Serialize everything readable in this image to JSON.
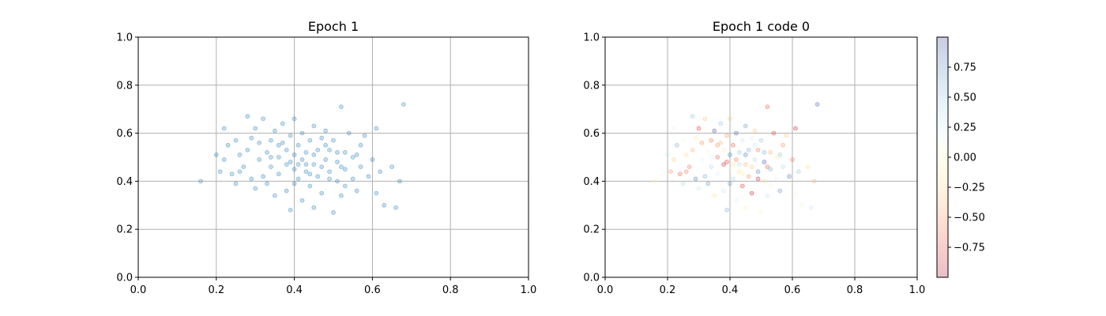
{
  "chart_data": [
    {
      "type": "scatter",
      "title": "Epoch 1",
      "xlim": [
        0,
        1
      ],
      "ylim": [
        0,
        1
      ],
      "xticks": [
        "0.0",
        "0.2",
        "0.4",
        "0.6",
        "0.8",
        "1.0"
      ],
      "yticks": [
        "0.0",
        "0.2",
        "0.4",
        "0.6",
        "0.8",
        "1.0"
      ],
      "grid": true,
      "point_color": "#1f77b4",
      "point_alpha": 0.25,
      "points": [
        [
          0.16,
          0.4
        ],
        [
          0.2,
          0.51
        ],
        [
          0.21,
          0.44
        ],
        [
          0.22,
          0.62
        ],
        [
          0.22,
          0.49
        ],
        [
          0.23,
          0.55
        ],
        [
          0.24,
          0.43
        ],
        [
          0.25,
          0.57
        ],
        [
          0.25,
          0.39
        ],
        [
          0.26,
          0.51
        ],
        [
          0.27,
          0.46
        ],
        [
          0.28,
          0.67
        ],
        [
          0.28,
          0.53
        ],
        [
          0.29,
          0.41
        ],
        [
          0.29,
          0.58
        ],
        [
          0.3,
          0.37
        ],
        [
          0.3,
          0.62
        ],
        [
          0.31,
          0.49
        ],
        [
          0.31,
          0.56
        ],
        [
          0.32,
          0.42
        ],
        [
          0.32,
          0.66
        ],
        [
          0.33,
          0.52
        ],
        [
          0.33,
          0.39
        ],
        [
          0.34,
          0.57
        ],
        [
          0.34,
          0.46
        ],
        [
          0.35,
          0.34
        ],
        [
          0.35,
          0.61
        ],
        [
          0.36,
          0.5
        ],
        [
          0.36,
          0.43
        ],
        [
          0.37,
          0.56
        ],
        [
          0.37,
          0.64
        ],
        [
          0.38,
          0.47
        ],
        [
          0.38,
          0.36
        ],
        [
          0.38,
          0.53
        ],
        [
          0.39,
          0.28
        ],
        [
          0.39,
          0.59
        ],
        [
          0.4,
          0.45
        ],
        [
          0.4,
          0.51
        ],
        [
          0.4,
          0.66
        ],
        [
          0.41,
          0.41
        ],
        [
          0.41,
          0.55
        ],
        [
          0.42,
          0.32
        ],
        [
          0.42,
          0.49
        ],
        [
          0.42,
          0.6
        ],
        [
          0.43,
          0.44
        ],
        [
          0.43,
          0.52
        ],
        [
          0.44,
          0.38
        ],
        [
          0.44,
          0.57
        ],
        [
          0.45,
          0.47
        ],
        [
          0.45,
          0.63
        ],
        [
          0.45,
          0.29
        ],
        [
          0.46,
          0.53
        ],
        [
          0.46,
          0.42
        ],
        [
          0.47,
          0.58
        ],
        [
          0.47,
          0.35
        ],
        [
          0.48,
          0.49
        ],
        [
          0.48,
          0.61
        ],
        [
          0.49,
          0.44
        ],
        [
          0.49,
          0.53
        ],
        [
          0.5,
          0.27
        ],
        [
          0.5,
          0.57
        ],
        [
          0.51,
          0.4
        ],
        [
          0.51,
          0.48
        ],
        [
          0.52,
          0.71
        ],
        [
          0.52,
          0.34
        ],
        [
          0.53,
          0.52
        ],
        [
          0.53,
          0.45
        ],
        [
          0.54,
          0.6
        ],
        [
          0.55,
          0.41
        ],
        [
          0.55,
          0.5
        ],
        [
          0.56,
          0.36
        ],
        [
          0.57,
          0.55
        ],
        [
          0.57,
          0.46
        ],
        [
          0.58,
          0.59
        ],
        [
          0.59,
          0.42
        ],
        [
          0.6,
          0.49
        ],
        [
          0.61,
          0.35
        ],
        [
          0.61,
          0.62
        ],
        [
          0.62,
          0.44
        ],
        [
          0.63,
          0.3
        ],
        [
          0.65,
          0.46
        ],
        [
          0.66,
          0.29
        ],
        [
          0.67,
          0.4
        ],
        [
          0.68,
          0.72
        ],
        [
          0.26,
          0.44
        ],
        [
          0.34,
          0.5
        ],
        [
          0.39,
          0.48
        ],
        [
          0.43,
          0.47
        ],
        [
          0.47,
          0.46
        ],
        [
          0.51,
          0.52
        ],
        [
          0.36,
          0.55
        ],
        [
          0.4,
          0.39
        ],
        [
          0.44,
          0.43
        ],
        [
          0.48,
          0.55
        ],
        [
          0.52,
          0.46
        ],
        [
          0.56,
          0.51
        ],
        [
          0.41,
          0.47
        ],
        [
          0.45,
          0.51
        ],
        [
          0.49,
          0.41
        ],
        [
          0.53,
          0.38
        ]
      ]
    },
    {
      "type": "scatter",
      "title": "Epoch 1 code 0",
      "xlim": [
        0,
        1
      ],
      "ylim": [
        0,
        1
      ],
      "xticks": [
        "0.0",
        "0.2",
        "0.4",
        "0.6",
        "0.8",
        "1.0"
      ],
      "yticks": [
        "0.0",
        "0.2",
        "0.4",
        "0.6",
        "0.8",
        "1.0"
      ],
      "grid": true,
      "point_alpha": 0.25,
      "colorbar": {
        "colormap": "RdYlBu",
        "min": -1,
        "max": 1,
        "ticks": [
          "0.75",
          "0.50",
          "0.25",
          "0.00",
          "−0.25",
          "−0.50",
          "−0.75"
        ],
        "tick_values": [
          0.75,
          0.5,
          0.25,
          0,
          -0.25,
          -0.5,
          -0.75
        ]
      },
      "codes": [
        -0.1,
        0.3,
        -0.5,
        0.2,
        -0.3,
        0.6,
        -0.7,
        0.1,
        0.4,
        -0.2,
        -0.6,
        0.5,
        -0.4,
        0.8,
        -0.1,
        0.3,
        -0.8,
        0.2,
        -0.5,
        0.6,
        -0.3,
        0.1,
        0.7,
        -0.6,
        0.4,
        -0.2,
        0.9,
        -0.7,
        0.2,
        -0.4,
        0.5,
        -0.9,
        0.3,
        -0.1,
        0.6,
        -0.5,
        0.1,
        0.8,
        -0.3,
        0.4,
        -0.7,
        0.2,
        -0.6,
        0.9,
        -0.2,
        0.5,
        -0.8,
        0.3,
        -0.4,
        0.7,
        -0.1,
        0.6,
        -0.5,
        0.2,
        -0.9,
        0.4,
        -0.3,
        0.8,
        -0.6,
        0.1,
        0.5,
        -0.2,
        0.9,
        -0.7,
        0.3,
        -0.4,
        0.6,
        -0.8,
        0.2,
        -0.1,
        0.7,
        -0.5,
        0.4,
        -0.3,
        0.8,
        -0.6,
        0.1,
        -0.9,
        0.5,
        0.1,
        -0.2,
        0.3,
        -0.4,
        0.9,
        -0.6,
        0.2,
        -0.8,
        0.4,
        -0.3,
        0.6,
        -0.5,
        0.7,
        -0.1,
        0.3,
        -0.7,
        0.5,
        -0.2,
        0.8,
        -0.9,
        0.1
      ]
    }
  ]
}
